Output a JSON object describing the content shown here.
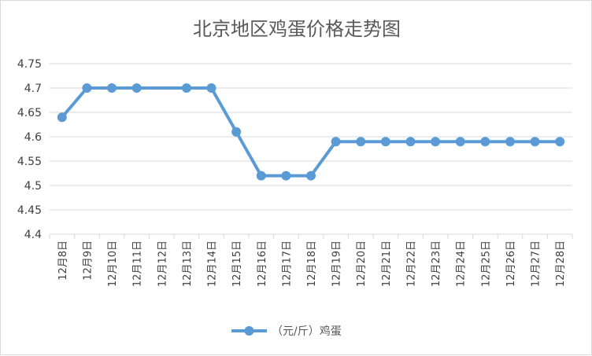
{
  "chart_data": {
    "type": "line",
    "title": "北京地区鸡蛋价格走势图",
    "xlabel": "",
    "ylabel": "",
    "categories": [
      "12月8日",
      "12月9日",
      "12月10日",
      "12月11日",
      "12月12日",
      "12月13日",
      "12月14日",
      "12月15日",
      "12月16日",
      "12月17日",
      "12月18日",
      "12月19日",
      "12月20日",
      "12月21日",
      "12月22日",
      "12月23日",
      "12月24日",
      "12月25日",
      "12月26日",
      "12月27日",
      "12月28日"
    ],
    "series": [
      {
        "name": "（元/斤）鸡蛋",
        "values": [
          4.64,
          4.7,
          4.7,
          4.7,
          null,
          4.7,
          4.7,
          4.61,
          4.52,
          4.52,
          4.52,
          4.59,
          4.59,
          4.59,
          4.59,
          4.59,
          4.59,
          4.59,
          4.59,
          4.59,
          4.59
        ]
      }
    ],
    "ylim": [
      4.4,
      4.75
    ],
    "yticks": [
      "4.4",
      "4.45",
      "4.5",
      "4.55",
      "4.6",
      "4.65",
      "4.7",
      "4.75"
    ],
    "grid": true,
    "legend_position": "bottom",
    "colors": {
      "series": "#5b9bd5",
      "grid": "#d9d9d9",
      "text": "#595959"
    }
  }
}
